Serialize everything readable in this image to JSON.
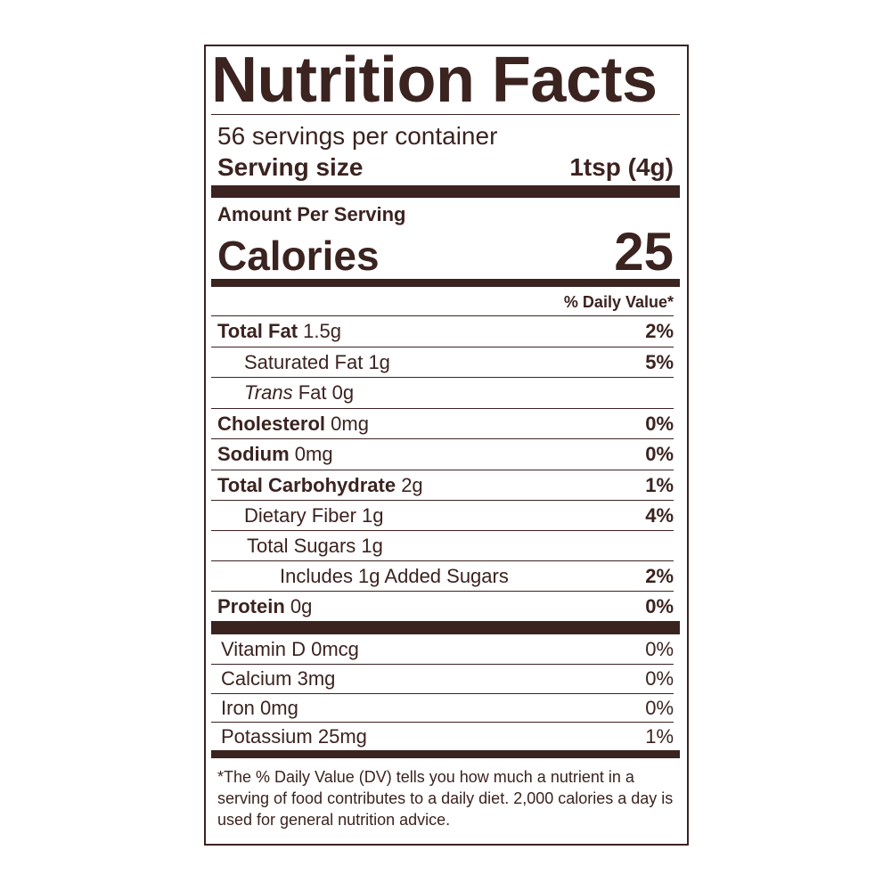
{
  "title": "Nutrition Facts",
  "servings": "56 servings per container",
  "serving_size": {
    "label": "Serving size",
    "value": "1tsp (4g)"
  },
  "amount_per_serving": "Amount Per Serving",
  "calories": {
    "label": "Calories",
    "value": "25"
  },
  "daily_value_header": "% Daily Value*",
  "nutrients": [
    {
      "name": "Total Fat",
      "amount": "1.5g",
      "dv": "2%"
    },
    {
      "name": "Saturated Fat",
      "amount": "1g",
      "dv": "5%"
    },
    {
      "name_prefix": "Trans",
      "name": "Fat",
      "amount": "0g"
    },
    {
      "name": "Cholesterol",
      "amount": "0mg",
      "dv": "0%"
    },
    {
      "name": "Sodium",
      "amount": "0mg",
      "dv": "0%"
    },
    {
      "name": "Total Carbohydrate",
      "amount": "2g",
      "dv": "1%"
    },
    {
      "name": "Dietary Fiber",
      "amount": "1g",
      "dv": "4%"
    },
    {
      "name": "Total Sugars",
      "amount": "1g"
    },
    {
      "name": "Includes 1g Added Sugars",
      "dv": "2%"
    },
    {
      "name": "Protein",
      "amount": "0g",
      "dv": "0%"
    }
  ],
  "vitamins": [
    {
      "name": "Vitamin D",
      "amount": "0mcg",
      "dv": "0%"
    },
    {
      "name": "Calcium",
      "amount": "3mg",
      "dv": "0%"
    },
    {
      "name": "Iron",
      "amount": "0mg",
      "dv": "0%"
    },
    {
      "name": "Potassium",
      "amount": "25mg",
      "dv": "1%"
    }
  ],
  "footnote": "*The % Daily Value (DV) tells you how much a nutrient in a serving of food contributes to a daily diet. 2,000 calories a day is used for general nutrition advice."
}
